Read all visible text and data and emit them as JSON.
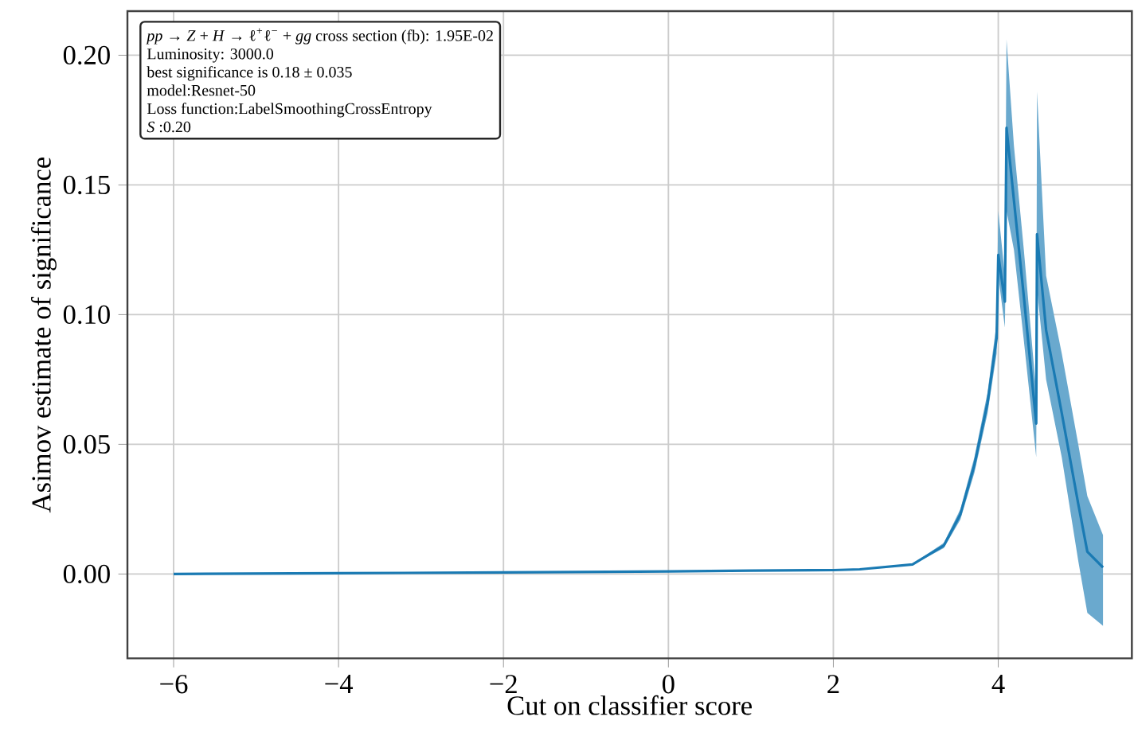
{
  "chart_data": {
    "type": "line",
    "xlabel": "Cut on classifier score",
    "ylabel": "Asimov estimate of significance",
    "annotations": [
      "*pp* → *Z* + *H* → ℓ$^{+}$ℓ$^{−}$ + *gg* cross section (fb): 1.95E-02",
      "Luminosity: 3000.0",
      "best significance is 0.18 ± 0.035",
      "model:Resnet-50",
      "Loss function:LabelSmoothingCrossEntropy",
      "*S* :0.20"
    ],
    "xlim": [
      -6.56,
      5.62
    ],
    "ylim": [
      -0.0325,
      0.217
    ],
    "xticks": [
      {
        "value": -6,
        "label": "−6"
      },
      {
        "value": -4,
        "label": "−4"
      },
      {
        "value": -2,
        "label": "−2"
      },
      {
        "value": 0,
        "label": "0"
      },
      {
        "value": 2,
        "label": "2"
      },
      {
        "value": 4,
        "label": "4"
      }
    ],
    "yticks": [
      {
        "value": 0,
        "label": "0.00"
      },
      {
        "value": 0.05,
        "label": "0.05"
      },
      {
        "value": 0.1,
        "label": "0.10"
      },
      {
        "value": 0.15,
        "label": "0.15"
      },
      {
        "value": 0.2,
        "label": "0.20"
      }
    ],
    "grid": true,
    "series": [
      {
        "color": "#1a7ab3",
        "x": [
          -6,
          -4,
          -2,
          0,
          1,
          2,
          2.32,
          2.96,
          3.34,
          3.54,
          3.71,
          3.87,
          3.98,
          4.0,
          4.08,
          4.1,
          4.19,
          4.31,
          4.46,
          4.47,
          4.58,
          4.77,
          4.97,
          5.08,
          5.27
        ],
        "values": [
          0.0,
          0.0003,
          0.0006,
          0.001,
          0.0013,
          0.0015,
          0.0018,
          0.0037,
          0.011,
          0.023,
          0.042,
          0.066,
          0.091,
          0.123,
          0.105,
          0.172,
          0.144,
          0.107,
          0.058,
          0.131,
          0.094,
          0.062,
          0.027,
          0.0086,
          0.0025
        ],
        "lower": [
          0.0,
          0.0003,
          0.0006,
          0.001,
          0.0013,
          0.0015,
          0.0017,
          0.0035,
          0.01,
          0.021,
          0.039,
          0.062,
          0.085,
          0.115,
          0.095,
          0.14,
          0.125,
          0.09,
          0.045,
          0.11,
          0.075,
          0.045,
          0.005,
          -0.015,
          -0.02
        ],
        "upper": [
          0.0,
          0.0003,
          0.0006,
          0.001,
          0.0013,
          0.0015,
          0.0019,
          0.0039,
          0.012,
          0.025,
          0.045,
          0.07,
          0.097,
          0.14,
          0.115,
          0.206,
          0.165,
          0.125,
          0.07,
          0.186,
          0.115,
          0.085,
          0.05,
          0.03,
          0.015
        ]
      }
    ]
  }
}
